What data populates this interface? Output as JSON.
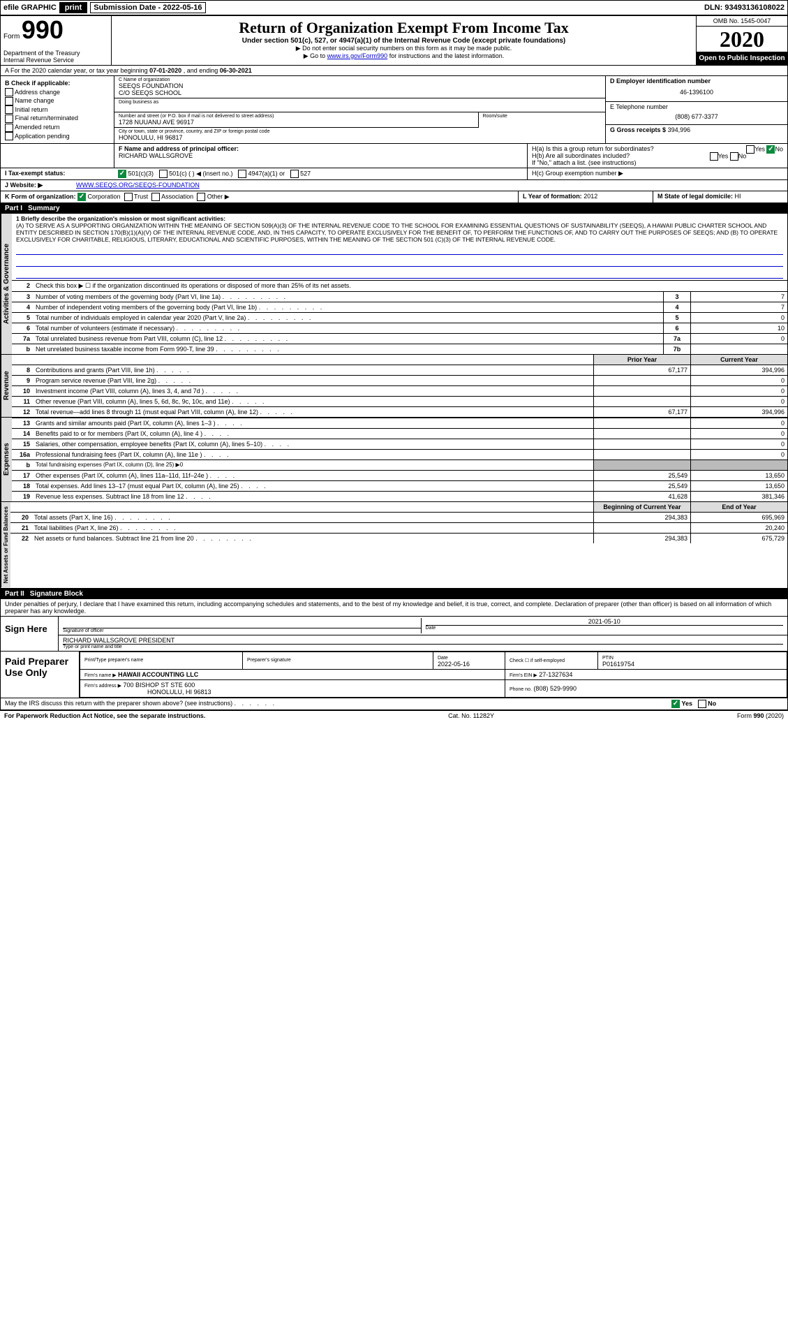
{
  "top": {
    "efile": "efile GRAPHIC",
    "print": "print",
    "subdate_label": "Submission Date - 2022-05-16",
    "dln": "DLN: 93493136108022"
  },
  "header": {
    "form_prefix": "Form",
    "form_number": "990",
    "dept": "Department of the Treasury",
    "irs": "Internal Revenue Service",
    "title": "Return of Organization Exempt From Income Tax",
    "subtitle": "Under section 501(c), 527, or 4947(a)(1) of the Internal Revenue Code (except private foundations)",
    "note_ssn": "▶ Do not enter social security numbers on this form as it may be made public.",
    "note_go_pre": "▶ Go to ",
    "note_go_link": "www.irs.gov/Form990",
    "note_go_post": " for instructions and the latest information.",
    "omb": "OMB No. 1545-0047",
    "year": "2020",
    "open_public": "Open to Public Inspection"
  },
  "period": {
    "text_pre": "A For the 2020 calendar year, or tax year beginning ",
    "begin": "07-01-2020",
    "mid": " , and ending ",
    "end": "06-30-2021"
  },
  "checks": {
    "heading": "B Check if applicable:",
    "address": "Address change",
    "name": "Name change",
    "initial": "Initial return",
    "final": "Final return/terminated",
    "amended": "Amended return",
    "app": "Application pending"
  },
  "orgblock": {
    "c_label": "C Name of organization",
    "name": "SEEQS FOUNDATION",
    "co": "C/O SEEQS SCHOOL",
    "dba_label": "Doing business as",
    "street_label": "Number and street (or P.O. box if mail is not delivered to street address)",
    "room_label": "Room/suite",
    "street": "1728 NUUANU AVE 96917",
    "city_label": "City or town, state or province, country, and ZIP or foreign postal code",
    "city": "HONOLULU, HI  96817"
  },
  "rightblock": {
    "d_label": "D Employer identification number",
    "ein": "46-1396100",
    "e_label": "E Telephone number",
    "phone": "(808) 677-3377",
    "g_label": "G Gross receipts $",
    "gross": "394,996"
  },
  "officer": {
    "f_label": "F  Name and address of principal officer:",
    "name": "RICHARD WALLSGROVE"
  },
  "hblock": {
    "ha": "H(a)  Is this a group return for subordinates?",
    "ha_no": "No",
    "hb": "H(b)  Are all subordinates included?",
    "hb_note": "If \"No,\" attach a list. (see instructions)",
    "hc": "H(c)  Group exemption number ▶"
  },
  "tax_exempt": {
    "i_label": "I  Tax-exempt status:",
    "c3": "501(c)(3)",
    "c_insert": "501(c) (   ) ◀ (insert no.)",
    "a1": "4947(a)(1) or",
    "s527": "527"
  },
  "website": {
    "j_label": "J  Website: ▶",
    "url": "WWW.SEEQS.ORG/SEEQS-FOUNDATION"
  },
  "formorg": {
    "k_label": "K Form of organization:",
    "corp": "Corporation",
    "trust": "Trust",
    "assoc": "Association",
    "other": "Other ▶",
    "l_label": "L Year of formation:",
    "l_val": "2012",
    "m_label": "M State of legal domicile:",
    "m_val": "HI"
  },
  "part1": {
    "label": "Part I",
    "title": "Summary",
    "line1_label": "1  Briefly describe the organization's mission or most significant activities:",
    "mission": "(A) TO SERVE AS A SUPPORTING ORGANIZATION WITHIN THE MEANING OF SECTION 509(A)(3) OF THE INTERNAL REVENUE CODE TO THE SCHOOL FOR EXAMINING ESSENTIAL QUESTIONS OF SUSTAINABILITY (SEEQS), A HAWAII PUBLIC CHARTER SCHOOL AND ENTITY DESCRIBED IN SECTION 170(B)(1)(A)(V) OF THE INTERNAL REVENUE CODE, AND, IN THIS CAPACITY, TO OPERATE EXCLUSIVELY FOR THE BENEFIT OF, TO PERFORM THE FUNCTIONS OF, AND TO CARRY OUT THE PURPOSES OF SEEQS; AND (B) TO OPERATE EXCLUSIVELY FOR CHARITABLE, RELIGIOUS, LITERARY, EDUCATIONAL AND SCIENTIFIC PURPOSES, WITHIN THE MEANING OF THE SECTION 501 (C)(3) OF THE INTERNAL REVENUE CODE.",
    "line2": "Check this box ▶ ☐ if the organization discontinued its operations or disposed of more than 25% of its net assets.",
    "lines": [
      {
        "n": "3",
        "t": "Number of voting members of the governing body (Part VI, line 1a)",
        "box": "3",
        "v": "7"
      },
      {
        "n": "4",
        "t": "Number of independent voting members of the governing body (Part VI, line 1b)",
        "box": "4",
        "v": "7"
      },
      {
        "n": "5",
        "t": "Total number of individuals employed in calendar year 2020 (Part V, line 2a)",
        "box": "5",
        "v": "0"
      },
      {
        "n": "6",
        "t": "Total number of volunteers (estimate if necessary)",
        "box": "6",
        "v": "10"
      },
      {
        "n": "7a",
        "t": "Total unrelated business revenue from Part VIII, column (C), line 12",
        "box": "7a",
        "v": "0"
      },
      {
        "n": "b",
        "t": "Net unrelated business taxable income from Form 990-T, line 39",
        "box": "7b",
        "v": ""
      }
    ],
    "col_prior": "Prior Year",
    "col_current": "Current Year",
    "rev": [
      {
        "n": "8",
        "t": "Contributions and grants (Part VIII, line 1h)",
        "p": "67,177",
        "c": "394,996"
      },
      {
        "n": "9",
        "t": "Program service revenue (Part VIII, line 2g)",
        "p": "",
        "c": "0"
      },
      {
        "n": "10",
        "t": "Investment income (Part VIII, column (A), lines 3, 4, and 7d )",
        "p": "",
        "c": "0"
      },
      {
        "n": "11",
        "t": "Other revenue (Part VIII, column (A), lines 5, 6d, 8c, 9c, 10c, and 11e)",
        "p": "",
        "c": "0"
      },
      {
        "n": "12",
        "t": "Total revenue—add lines 8 through 11 (must equal Part VIII, column (A), line 12)",
        "p": "67,177",
        "c": "394,996"
      }
    ],
    "exp": [
      {
        "n": "13",
        "t": "Grants and similar amounts paid (Part IX, column (A), lines 1–3 )",
        "p": "",
        "c": "0"
      },
      {
        "n": "14",
        "t": "Benefits paid to or for members (Part IX, column (A), line 4 )",
        "p": "",
        "c": "0"
      },
      {
        "n": "15",
        "t": "Salaries, other compensation, employee benefits (Part IX, column (A), lines 5–10)",
        "p": "",
        "c": "0"
      },
      {
        "n": "16a",
        "t": "Professional fundraising fees (Part IX, column (A), line 11e )",
        "p": "",
        "c": "0"
      },
      {
        "n": "b",
        "t": "Total fundraising expenses (Part IX, column (D), line 25) ▶0",
        "grey": true
      },
      {
        "n": "17",
        "t": "Other expenses (Part IX, column (A), lines 11a–11d, 11f–24e )",
        "p": "25,549",
        "c": "13,650"
      },
      {
        "n": "18",
        "t": "Total expenses. Add lines 13–17 (must equal Part IX, column (A), line 25)",
        "p": "25,549",
        "c": "13,650"
      },
      {
        "n": "19",
        "t": "Revenue less expenses. Subtract line 18 from line 12",
        "p": "41,628",
        "c": "381,346"
      }
    ],
    "col_begin": "Beginning of Current Year",
    "col_end": "End of Year",
    "net": [
      {
        "n": "20",
        "t": "Total assets (Part X, line 16)",
        "p": "294,383",
        "c": "695,969"
      },
      {
        "n": "21",
        "t": "Total liabilities (Part X, line 26)",
        "p": "",
        "c": "20,240"
      },
      {
        "n": "22",
        "t": "Net assets or fund balances. Subtract line 21 from line 20",
        "p": "294,383",
        "c": "675,729"
      }
    ]
  },
  "vtabs": {
    "a": "Activities & Governance",
    "r": "Revenue",
    "e": "Expenses",
    "n": "Net Assets or Fund Balances"
  },
  "part2": {
    "label": "Part II",
    "title": "Signature Block",
    "declaration": "Under penalties of perjury, I declare that I have examined this return, including accompanying schedules and statements, and to the best of my knowledge and belief, it is true, correct, and complete. Declaration of preparer (other than officer) is based on all information of which preparer has any knowledge."
  },
  "sign": {
    "sign_here": "Sign Here",
    "sig_label": "Signature of officer",
    "date_label": "Date",
    "date": "2021-05-10",
    "name": "RICHARD WALLSGROVE  PRESIDENT",
    "name_label": "Type or print name and title"
  },
  "paid": {
    "label": "Paid Preparer Use Only",
    "print_name": "Print/Type preparer's name",
    "prep_sig": "Preparer's signature",
    "date_h": "Date",
    "date_v": "2022-05-16",
    "check_self": "Check ☐ if self-employed",
    "ptin_h": "PTIN",
    "ptin_v": "P01619754",
    "firm_name_h": "Firm's name    ▶",
    "firm_name": "HAWAII ACCOUNTING LLC",
    "firm_ein_h": "Firm's EIN ▶",
    "firm_ein": "27-1327634",
    "firm_addr_h": "Firm's address ▶",
    "firm_addr": "700 BISHOP ST STE 600",
    "firm_city": "HONOLULU, HI  96813",
    "phone_h": "Phone no.",
    "phone": "(808) 529-9990"
  },
  "discuss": {
    "text": "May the IRS discuss this return with the preparer shown above? (see instructions)",
    "yes": "Yes",
    "no": "No"
  },
  "footer": {
    "left": "For Paperwork Reduction Act Notice, see the separate instructions.",
    "mid": "Cat. No. 11282Y",
    "right_pre": "Form ",
    "right_num": "990",
    "right_post": " (2020)"
  }
}
